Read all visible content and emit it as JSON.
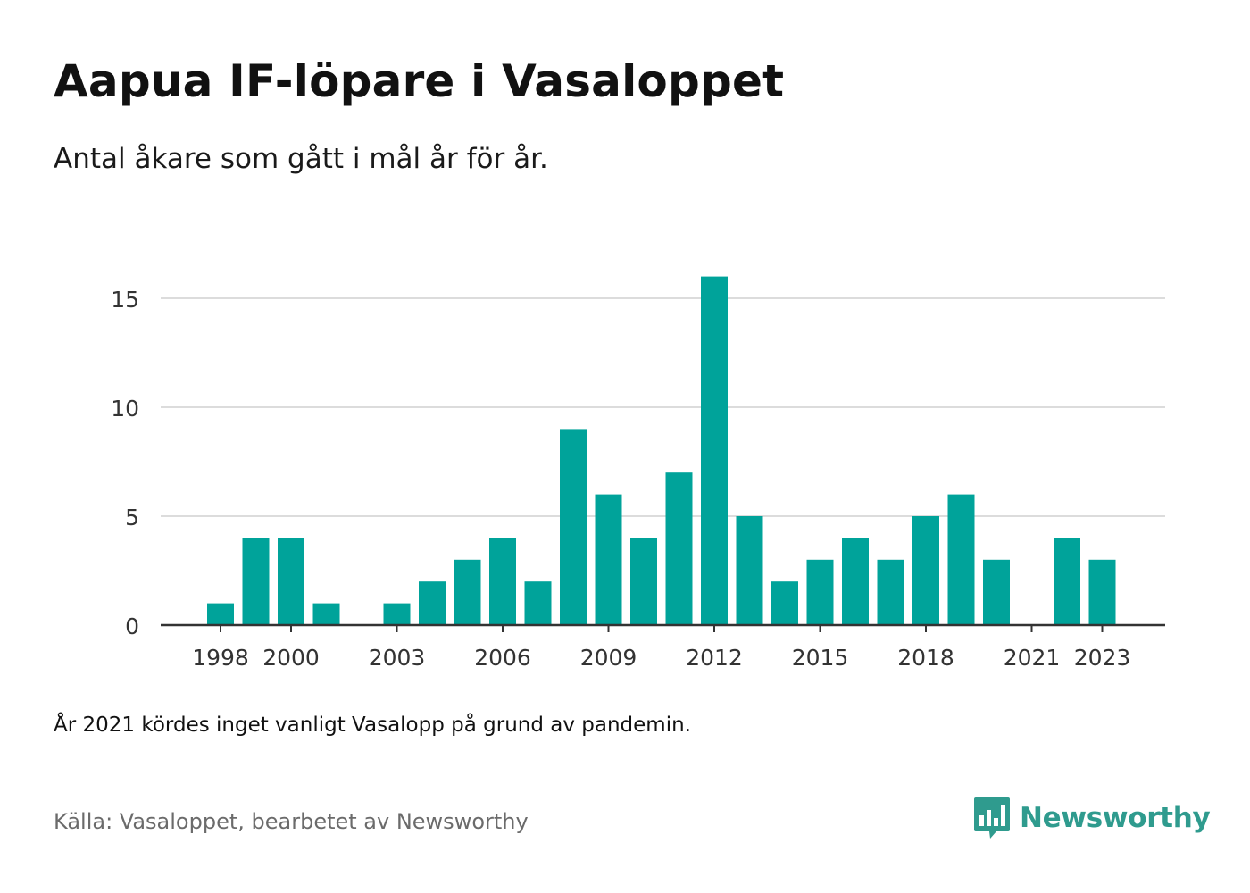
{
  "title": "Aapua IF-löpare i Vasaloppet",
  "subtitle": "Antal åkare som gått i mål år för år.",
  "note": "År 2021 kördes inget vanligt Vasalopp på grund av pandemin.",
  "source": "Källa: Vasaloppet, bearbetet av Newsworthy",
  "logo": {
    "text": "Newsworthy",
    "icon": "bar-chart-speech-bubble-icon",
    "color": "#2f9b8e"
  },
  "chart_data": {
    "type": "bar",
    "x": [
      1998,
      1999,
      2000,
      2001,
      2002,
      2003,
      2004,
      2005,
      2006,
      2007,
      2008,
      2009,
      2010,
      2011,
      2012,
      2013,
      2014,
      2015,
      2016,
      2017,
      2018,
      2019,
      2020,
      2021,
      2022,
      2023
    ],
    "values": [
      1,
      4,
      4,
      1,
      0,
      1,
      2,
      3,
      4,
      2,
      9,
      6,
      4,
      7,
      16,
      5,
      2,
      3,
      4,
      3,
      5,
      6,
      3,
      0,
      4,
      3
    ],
    "x_tick_labels": [
      "1998",
      "2000",
      "2003",
      "2006",
      "2009",
      "2012",
      "2015",
      "2018",
      "2021",
      "2023"
    ],
    "y_ticks": [
      0,
      5,
      10,
      15
    ],
    "ylim": [
      0,
      16
    ],
    "xlabel": "",
    "ylabel": "",
    "grid": true,
    "bar_color": "#00a39a",
    "grid_color": "#dcdcdc",
    "axis_color": "#333333"
  }
}
